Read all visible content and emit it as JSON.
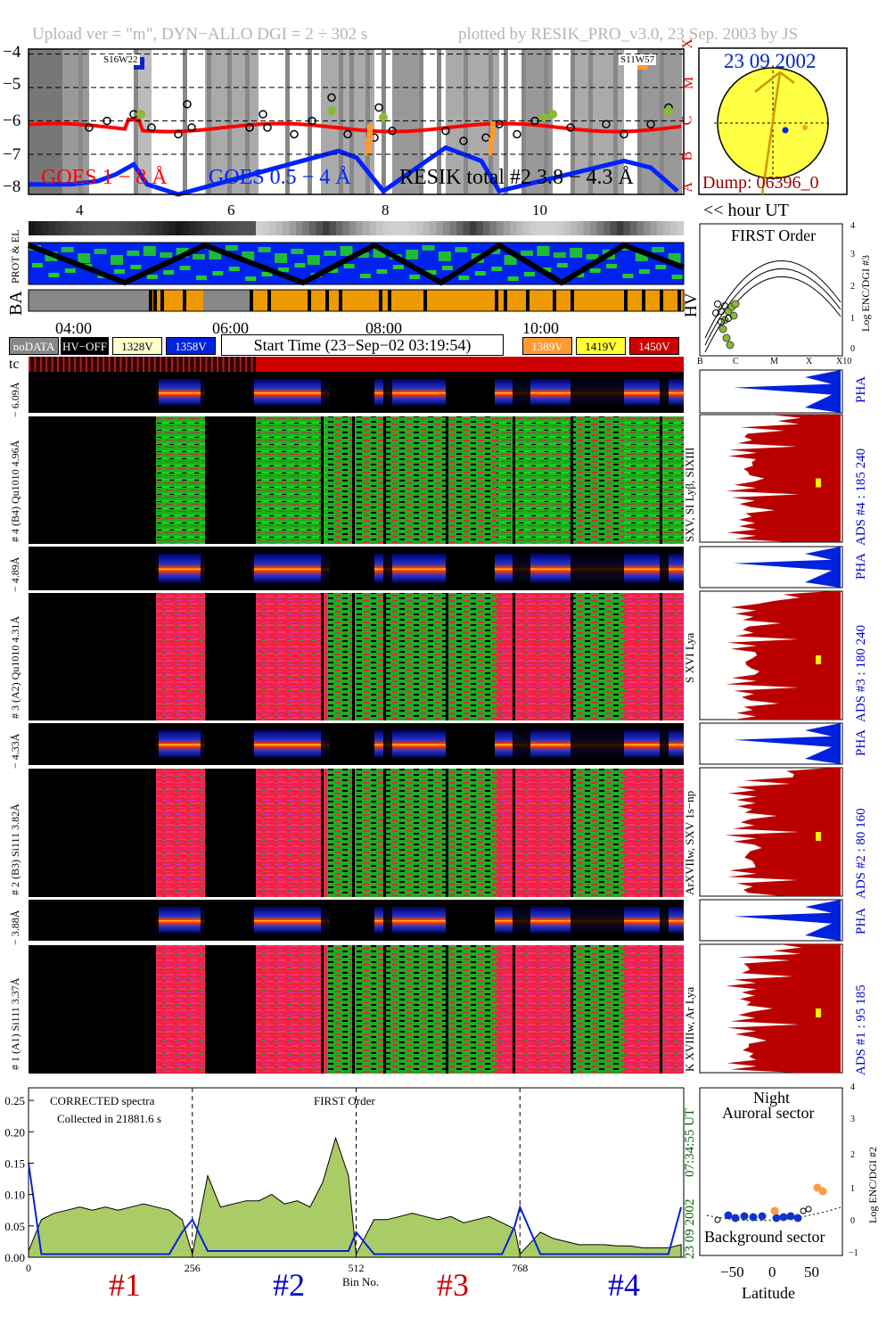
{
  "header": {
    "left": "Upload ver = \"m\", DYN−ALLO DGI =   2 ÷ 302 s",
    "right": "plotted by RESIK_PRO_v3.0, 23 Sep. 2003 by JS"
  },
  "goes": {
    "yticks": [
      "−4",
      "−5",
      "−6",
      "−7",
      "−8"
    ],
    "class_letters": [
      "X",
      "M",
      "C",
      "B",
      "A"
    ],
    "legend_goes1": "GOES 1 − 8 Å",
    "legend_goes05": "GOES 0.5 − 4 Å",
    "legend_resik": "RESIK total #2  3.8 − 4.3 Å",
    "saa_left": "S16W22",
    "saa_right": "S11W57",
    "hour_ticks": [
      "4",
      "6",
      "8",
      "10"
    ],
    "hour_axis_label": "<< hour UT",
    "colors": {
      "goes1": "#ff0000",
      "goes05": "#0022ff",
      "resik": "#000000",
      "orange": "#ff9933",
      "green": "#88bb33"
    }
  },
  "sun": {
    "date": "23 09 2002",
    "dump": "Dump: 06396_0"
  },
  "status_rows": {
    "row1_label": "PROT & EL",
    "row2_label": "BA",
    "row2_right": "HV",
    "time_ticks": [
      "04:00",
      "06:00",
      "08:00",
      "10:00"
    ]
  },
  "legend": {
    "nodata": "noDATA",
    "hvoff": "HV−OFF",
    "l328": "1328V",
    "l358": "1358V",
    "start_time": "Start Time (23−Sep−02 03:19:54)",
    "l389": "1389V",
    "l419": "1419V",
    "l450": "1450V",
    "tc": "tc"
  },
  "channels": [
    {
      "id": "4",
      "pha_label": "− 6.09Å",
      "main_label": "# 4 (B4) Qu1010 4.96Å",
      "lines": "SXV, SI Lyβ, SIXIII",
      "ads": "ADS #4 :   185 240"
    },
    {
      "id": "3",
      "pha_label": "− 4.89Å",
      "main_label": "# 3 (A2) Qu1010  4.31Å",
      "lines": "S XVI Lya",
      "ads": "ADS #3 :   180 240"
    },
    {
      "id": "2",
      "pha_label": "− 4.33Å",
      "main_label": "# 2 (B3) Si111  3.82Å",
      "lines": "ArXVIIw, SXV 1s−np",
      "ads": "ADS #2 :   80 160"
    },
    {
      "id": "1",
      "pha_label": "− 3.88Å",
      "main_label": "# 1 (A1) Si111  3.37Å",
      "lines": "K XVIIIw, Ar Lya",
      "ads": "ADS #1 :   95 185"
    }
  ],
  "pha_text": "PHA",
  "first_order": {
    "title": "FIRST Order",
    "ylabel": "Log ENC/DGI #3",
    "yticks": [
      "4",
      "3",
      "2",
      "1",
      "0"
    ],
    "xticks": [
      "B",
      "C",
      "M",
      "X",
      "X10"
    ]
  },
  "spectrum": {
    "title_line1": "CORRECTED spectra",
    "title_line2": "Collected in 21881.6 s",
    "first_order": "FIRST Order",
    "yticks": [
      "0.25",
      "0.20",
      "0.15",
      "0.10",
      "0.05",
      "0.00"
    ],
    "xticks": [
      "0",
      "256",
      "512",
      "768"
    ],
    "xlabel": "Bin No.",
    "time_label": "07:34:55 UT",
    "date_label": "23 09 2002",
    "channels": [
      "#1",
      "#2",
      "#3",
      "#4"
    ],
    "channel_colors": [
      "#cc0000",
      "#0000cc",
      "#cc0000",
      "#0000cc"
    ]
  },
  "latitude": {
    "night": "Night",
    "auroral": "Auroral sector",
    "background": "Background sector",
    "xlabel": "Latitude",
    "ylabel": "Log ENC/DGI #2",
    "xticks": [
      "−50",
      "0",
      "50"
    ],
    "yticks": [
      "4",
      "3",
      "2",
      "1",
      "0",
      "−1"
    ]
  },
  "chart_data": {
    "type": "line",
    "title": "",
    "x": [
      0,
      20,
      40,
      60,
      80,
      100,
      120,
      140,
      160,
      180,
      200,
      220,
      240,
      256,
      280,
      300,
      320,
      340,
      360,
      380,
      400,
      420,
      440,
      460,
      480,
      500,
      512,
      540,
      560,
      580,
      600,
      620,
      640,
      660,
      680,
      700,
      720,
      740,
      760,
      768,
      800,
      820,
      840,
      860,
      880,
      900,
      920,
      940,
      960,
      980,
      1000,
      1020
    ],
    "series": [
      {
        "name": "",
        "values": [
          0.01,
          0.06,
          0.07,
          0.075,
          0.08,
          0.075,
          0.08,
          0.075,
          0.08,
          0.085,
          0.08,
          0.075,
          0.06,
          0.005,
          0.13,
          0.08,
          0.085,
          0.09,
          0.09,
          0.1,
          0.085,
          0.09,
          0.08,
          0.12,
          0.19,
          0.13,
          0.005,
          0.06,
          0.06,
          0.065,
          0.07,
          0.065,
          0.06,
          0.065,
          0.055,
          0.06,
          0.065,
          0.055,
          0.045,
          0.005,
          0.04,
          0.03,
          0.025,
          0.02,
          0.02,
          0.02,
          0.018,
          0.018,
          0.015,
          0.015,
          0.015,
          0.02
        ]
      },
      {
        "name": "",
        "values": [
          0.15,
          0.005,
          0.005,
          0.005,
          0.005,
          0.005,
          0.005,
          0.005,
          0.005,
          0.005,
          0.005,
          0.005,
          0.04,
          0.06,
          0.01,
          0.01,
          0.01,
          0.01,
          0.01,
          0.01,
          0.01,
          0.01,
          0.01,
          0.01,
          0.01,
          0.01,
          0.04,
          0.005,
          0.005,
          0.005,
          0.005,
          0.005,
          0.005,
          0.005,
          0.005,
          0.005,
          0.005,
          0.005,
          0.05,
          0.08,
          0.005,
          0.005,
          0.005,
          0.005,
          0.005,
          0.005,
          0.005,
          0.005,
          0.005,
          0.005,
          0.005,
          0.08
        ]
      }
    ],
    "xlabel": "Bin No.",
    "ylabel": "",
    "xlim": [
      0,
      1024
    ],
    "ylim": [
      0,
      0.27
    ]
  }
}
